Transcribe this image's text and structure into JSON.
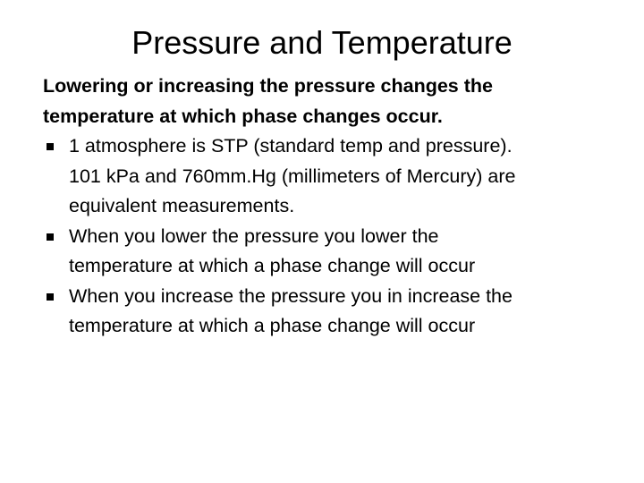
{
  "slide": {
    "title": "Pressure and Temperature",
    "intro": [
      "Lowering or increasing the pressure changes the",
      "temperature at which phase changes occur."
    ],
    "bullets": [
      {
        "lines": [
          "1 atmosphere is STP (standard temp and pressure).",
          "101 kPa and 760mm.Hg (millimeters of Mercury) are",
          "equivalent measurements."
        ]
      },
      {
        "lines": [
          "When you lower the pressure you lower the",
          "temperature at which a phase change will occur"
        ]
      },
      {
        "lines": [
          "When you increase the pressure you in increase the",
          "temperature at which a phase change will occur"
        ]
      }
    ]
  }
}
